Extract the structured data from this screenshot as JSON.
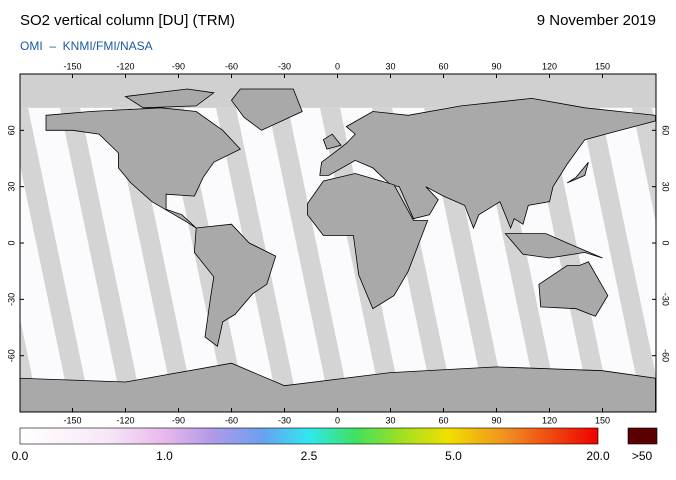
{
  "header": {
    "title": "SO2 vertical column [DU] (TRM)",
    "date": "9 November 2019",
    "source": "OMI  –  KNMI/FMI/NASA"
  },
  "map": {
    "lon_ticks": [
      -150,
      -120,
      -90,
      -60,
      -30,
      0,
      30,
      60,
      90,
      120,
      150
    ],
    "lat_ticks": [
      60,
      30,
      0,
      -30,
      -60
    ]
  },
  "colorbar": {
    "labels": [
      "0.0",
      "1.0",
      "2.5",
      "5.0",
      "20.0"
    ],
    "overflow_label": ">50"
  }
}
